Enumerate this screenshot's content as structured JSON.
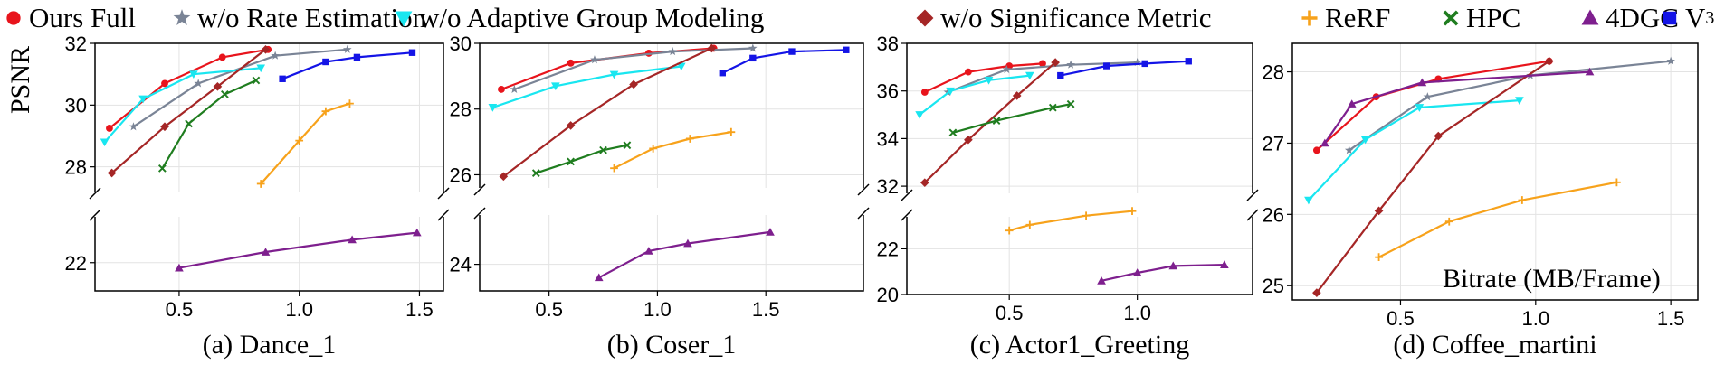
{
  "legend": {
    "items": [
      {
        "label": "Ours Full",
        "color": "#e8141c",
        "marker": "circle"
      },
      {
        "label": "w/o Rate Estimation",
        "color": "#7a8496",
        "marker": "star"
      },
      {
        "label": "w/o Adaptive Group Modeling",
        "color": "#19e6f0",
        "marker": "triangle-down"
      },
      {
        "label": "w/o Significance Metric",
        "color": "#a52626",
        "marker": "diamond"
      },
      {
        "label": "ReRF",
        "color": "#f7a21b",
        "marker": "plus"
      },
      {
        "label": "HPC",
        "color": "#1f7d1f",
        "marker": "x"
      },
      {
        "label": "4DGC",
        "color": "#7e1f8e",
        "marker": "triangle-up"
      },
      {
        "label": "V",
        "sup": "3",
        "color": "#1414e6",
        "marker": "square"
      }
    ]
  },
  "axes": {
    "ylabel": "PSNR",
    "xlabel": "Bitrate (MB/Frame)"
  },
  "chart_data": [
    {
      "type": "line",
      "caption": "(a) Dance_1",
      "xlim": [
        0.15,
        1.6
      ],
      "xticks": [
        0.5,
        1.0,
        1.5
      ],
      "broken_y": true,
      "upper": {
        "ylim": [
          27.2,
          32.0
        ],
        "yticks": [
          28,
          30,
          32
        ]
      },
      "lower": {
        "ylim": [
          21.2,
          23.3
        ],
        "yticks": [
          22
        ]
      },
      "series": [
        {
          "name": "Ours Full",
          "x": [
            0.21,
            0.44,
            0.68,
            0.87
          ],
          "y": [
            29.25,
            30.7,
            31.55,
            31.8
          ]
        },
        {
          "name": "w/o Rate Estimation",
          "x": [
            0.31,
            0.58,
            0.9,
            1.2
          ],
          "y": [
            29.3,
            30.7,
            31.6,
            31.8
          ]
        },
        {
          "name": "w/o Adaptive Group Modeling",
          "x": [
            0.19,
            0.35,
            0.56,
            0.84
          ],
          "y": [
            28.8,
            30.2,
            31.0,
            31.2
          ]
        },
        {
          "name": "w/o Significance Metric",
          "x": [
            0.22,
            0.44,
            0.66,
            0.86
          ],
          "y": [
            27.8,
            29.3,
            30.6,
            31.8
          ]
        },
        {
          "name": "ReRF",
          "x": [
            0.84,
            1.0,
            1.11,
            1.21
          ],
          "y": [
            27.45,
            28.85,
            29.8,
            30.05
          ]
        },
        {
          "name": "HPC",
          "x": [
            0.43,
            0.54,
            0.69,
            0.82
          ],
          "y": [
            27.95,
            29.4,
            30.35,
            30.8
          ]
        },
        {
          "name": "4DGC",
          "x": [
            0.5,
            0.86,
            1.22,
            1.49
          ],
          "y": [
            21.85,
            22.3,
            22.65,
            22.85
          ]
        },
        {
          "name": "V3",
          "x": [
            0.93,
            1.11,
            1.24,
            1.47
          ],
          "y": [
            30.85,
            31.4,
            31.55,
            31.7
          ]
        }
      ]
    },
    {
      "type": "line",
      "caption": "(b) Coser_1",
      "xlim": [
        0.18,
        1.95
      ],
      "xticks": [
        0.5,
        1.0,
        1.5
      ],
      "broken_y": true,
      "upper": {
        "ylim": [
          25.6,
          30.0
        ],
        "yticks": [
          26,
          28,
          30
        ]
      },
      "lower": {
        "ylim": [
          23.3,
          25.3
        ],
        "yticks": [
          24
        ]
      },
      "series": [
        {
          "name": "Ours Full",
          "x": [
            0.28,
            0.6,
            0.96,
            1.26
          ],
          "y": [
            28.6,
            29.4,
            29.7,
            29.85
          ]
        },
        {
          "name": "w/o Rate Estimation",
          "x": [
            0.34,
            0.71,
            1.07,
            1.44
          ],
          "y": [
            28.6,
            29.5,
            29.75,
            29.85
          ]
        },
        {
          "name": "w/o Adaptive Group Modeling",
          "x": [
            0.24,
            0.53,
            0.8,
            1.11
          ],
          "y": [
            28.05,
            28.7,
            29.05,
            29.3
          ]
        },
        {
          "name": "w/o Significance Metric",
          "x": [
            0.29,
            0.6,
            0.89,
            1.25
          ],
          "y": [
            25.95,
            27.5,
            28.75,
            29.85
          ]
        },
        {
          "name": "ReRF",
          "x": [
            0.8,
            0.98,
            1.15,
            1.34
          ],
          "y": [
            26.2,
            26.8,
            27.1,
            27.3
          ]
        },
        {
          "name": "HPC",
          "x": [
            0.44,
            0.6,
            0.75,
            0.86
          ],
          "y": [
            26.05,
            26.4,
            26.75,
            26.9
          ]
        },
        {
          "name": "4DGC",
          "x": [
            0.73,
            0.96,
            1.14,
            1.52
          ],
          "y": [
            23.65,
            24.35,
            24.55,
            24.85
          ]
        },
        {
          "name": "V3",
          "x": [
            1.3,
            1.44,
            1.62,
            1.87
          ],
          "y": [
            29.1,
            29.55,
            29.75,
            29.8
          ]
        }
      ]
    },
    {
      "type": "line",
      "caption": "(c) Actor1_Greeting",
      "xlim": [
        0.1,
        1.45
      ],
      "xticks": [
        0.5,
        1.0
      ],
      "broken_y": true,
      "upper": {
        "ylim": [
          31.7,
          38.0
        ],
        "yticks": [
          32,
          34,
          36,
          38
        ]
      },
      "lower": {
        "ylim": [
          20.0,
          23.4
        ],
        "yticks": [
          20,
          22
        ]
      },
      "series": [
        {
          "name": "Ours Full",
          "x": [
            0.17,
            0.34,
            0.5,
            0.63
          ],
          "y": [
            35.95,
            36.8,
            37.05,
            37.15
          ]
        },
        {
          "name": "w/o Rate Estimation",
          "x": [
            0.26,
            0.49,
            0.74,
            1.0
          ],
          "y": [
            35.95,
            36.9,
            37.1,
            37.2
          ]
        },
        {
          "name": "w/o Adaptive Group Modeling",
          "x": [
            0.15,
            0.27,
            0.42,
            0.58
          ],
          "y": [
            35.0,
            36.0,
            36.45,
            36.65
          ]
        },
        {
          "name": "w/o Significance Metric",
          "x": [
            0.17,
            0.34,
            0.53,
            0.68
          ],
          "y": [
            32.15,
            33.95,
            35.8,
            37.2
          ]
        },
        {
          "name": "ReRF",
          "x": [
            0.5,
            0.58,
            0.8,
            0.98
          ],
          "y": [
            22.8,
            23.05,
            23.45,
            23.65
          ]
        },
        {
          "name": "HPC",
          "x": [
            0.28,
            0.45,
            0.67,
            0.74
          ],
          "y": [
            34.25,
            34.75,
            35.3,
            35.45
          ]
        },
        {
          "name": "4DGC",
          "x": [
            0.86,
            1.0,
            1.14,
            1.34
          ],
          "y": [
            20.6,
            20.95,
            21.25,
            21.3
          ]
        },
        {
          "name": "V3",
          "x": [
            0.7,
            0.88,
            1.03,
            1.2
          ],
          "y": [
            36.65,
            37.05,
            37.15,
            37.25
          ]
        }
      ]
    },
    {
      "type": "line",
      "caption": "(d) Coffee_martini",
      "xlim": [
        0.1,
        1.6
      ],
      "xticks": [
        0.5,
        1.0,
        1.5
      ],
      "broken_y": false,
      "ylim": [
        24.8,
        28.4
      ],
      "yticks": [
        25,
        26,
        27,
        28
      ],
      "series": [
        {
          "name": "Ours Full",
          "x": [
            0.19,
            0.41,
            0.64,
            1.05
          ],
          "y": [
            26.9,
            27.65,
            27.9,
            28.15
          ]
        },
        {
          "name": "w/o Rate Estimation",
          "x": [
            0.31,
            0.6,
            0.98,
            1.5
          ],
          "y": [
            26.9,
            27.65,
            27.95,
            28.15
          ]
        },
        {
          "name": "w/o Adaptive Group Modeling",
          "x": [
            0.16,
            0.37,
            0.57,
            0.94
          ],
          "y": [
            26.2,
            27.05,
            27.5,
            27.6
          ]
        },
        {
          "name": "w/o Significance Metric",
          "x": [
            0.19,
            0.42,
            0.64,
            1.05
          ],
          "y": [
            24.9,
            26.05,
            27.1,
            28.15
          ]
        },
        {
          "name": "ReRF",
          "x": [
            0.42,
            0.68,
            0.95,
            1.3
          ],
          "y": [
            25.4,
            25.9,
            26.2,
            26.45
          ]
        },
        {
          "name": "4DGC",
          "x": [
            0.22,
            0.32,
            0.58,
            1.2
          ],
          "y": [
            27.0,
            27.55,
            27.85,
            28.0
          ]
        }
      ]
    }
  ]
}
